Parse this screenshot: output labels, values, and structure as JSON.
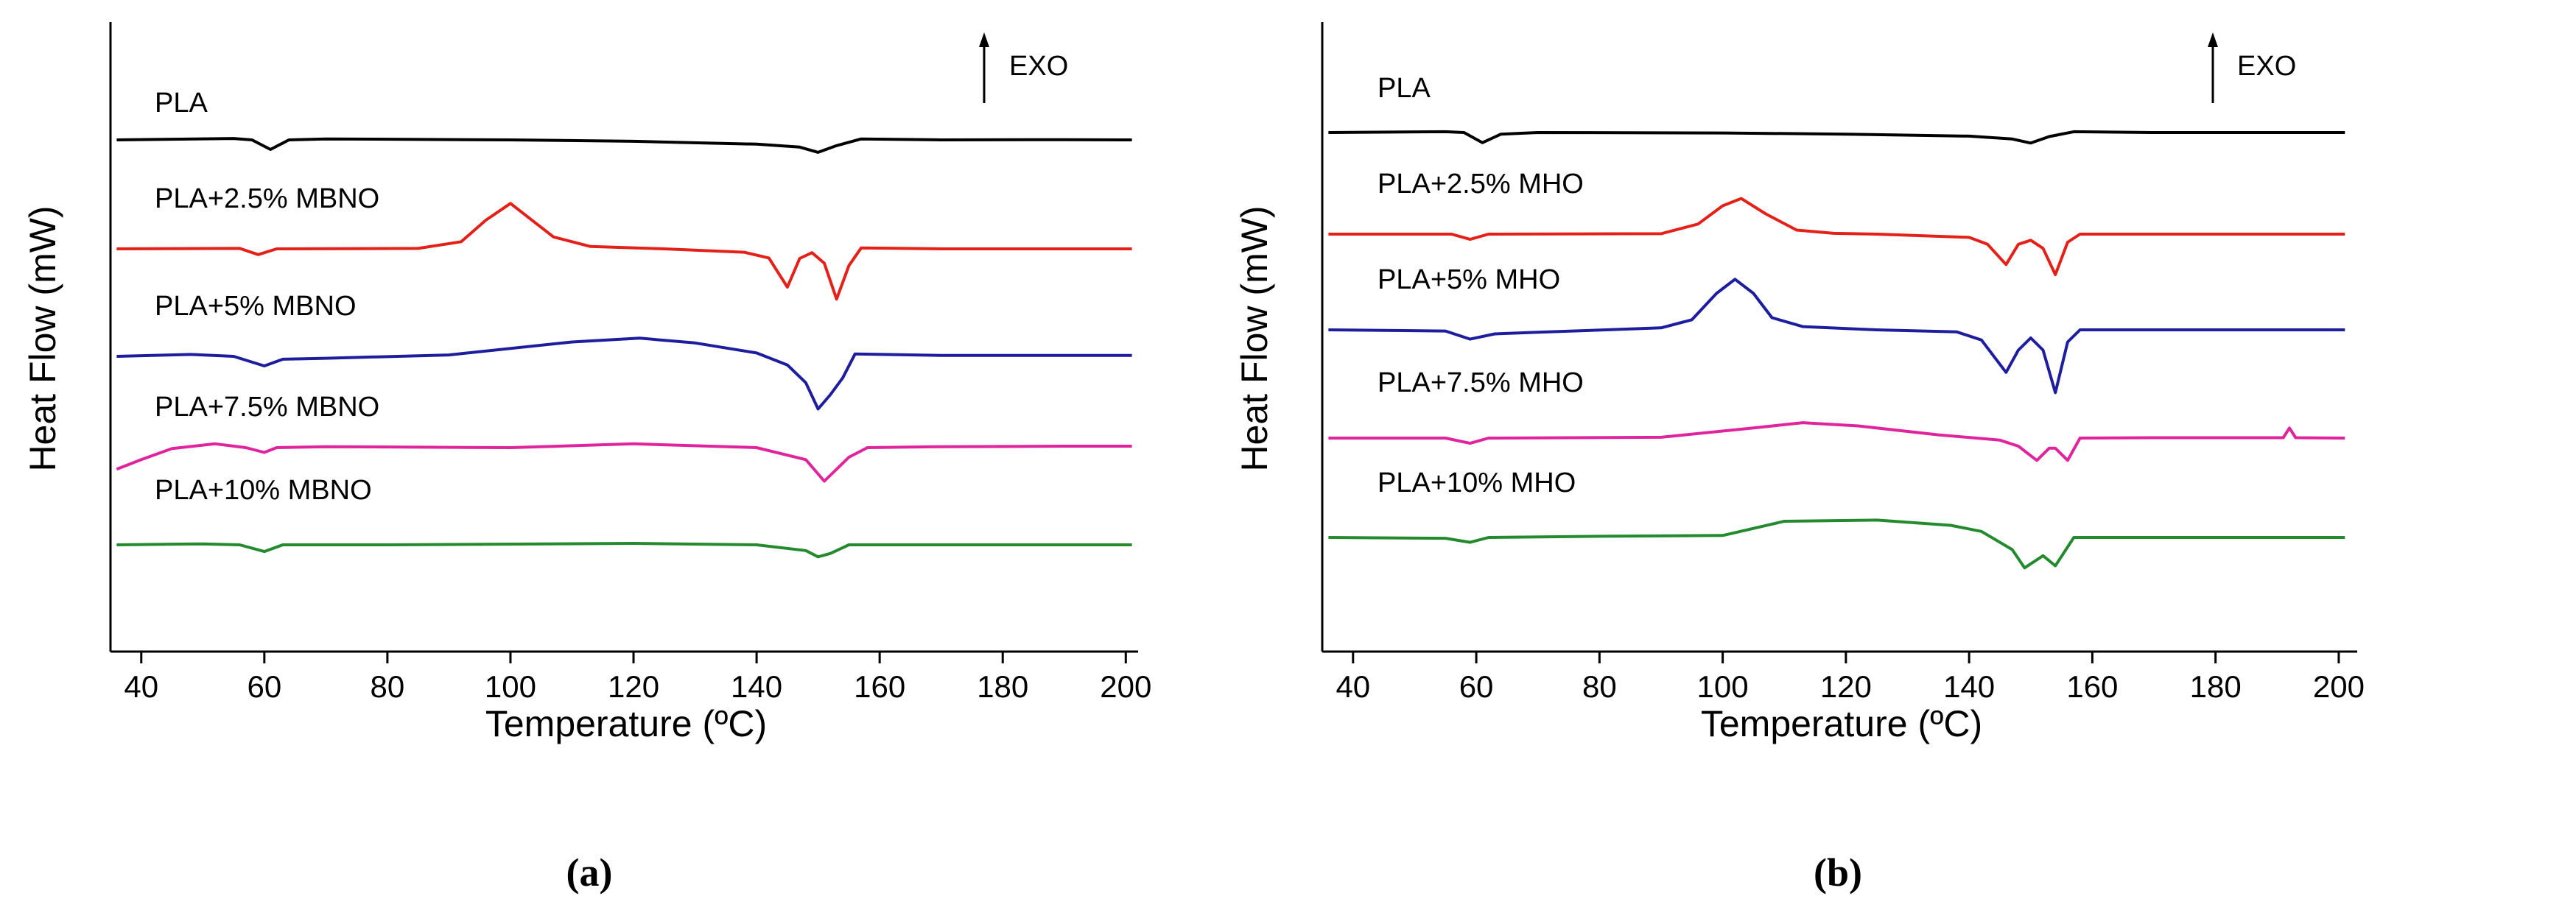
{
  "chart_data": [
    {
      "type": "line",
      "panel_label": "(a)",
      "xlabel": "Temperature (ºC)",
      "ylabel": "Heat Flow (mW)",
      "annotation": "EXO",
      "xlim": [
        35,
        202
      ],
      "xticks": [
        40,
        60,
        80,
        100,
        120,
        140,
        160,
        180,
        200
      ],
      "yticks_shown": false,
      "grid": false,
      "series": [
        {
          "name": "PLA",
          "color": "#000000",
          "points": [
            [
              36,
              0
            ],
            [
              55,
              0.3
            ],
            [
              58,
              0
            ],
            [
              61,
              -2.0
            ],
            [
              64,
              0
            ],
            [
              70,
              0.2
            ],
            [
              100,
              0
            ],
            [
              120,
              -0.3
            ],
            [
              140,
              -0.9
            ],
            [
              147,
              -1.5
            ],
            [
              150,
              -2.6
            ],
            [
              153,
              -1.2
            ],
            [
              157,
              0.2
            ],
            [
              170,
              0
            ],
            [
              190,
              0.05
            ],
            [
              201,
              0
            ]
          ]
        },
        {
          "name": "PLA+2.5% MBNO",
          "color": "#e32119",
          "points": [
            [
              36,
              0
            ],
            [
              56,
              0.1
            ],
            [
              59,
              -1.2
            ],
            [
              62,
              0
            ],
            [
              85,
              0.1
            ],
            [
              92,
              1.5
            ],
            [
              96,
              6.0
            ],
            [
              100,
              9.5
            ],
            [
              103,
              6.5
            ],
            [
              107,
              2.5
            ],
            [
              113,
              0.5
            ],
            [
              125,
              0
            ],
            [
              138,
              -0.7
            ],
            [
              142,
              -1.9
            ],
            [
              145,
              -8.0
            ],
            [
              147,
              -2.0
            ],
            [
              149,
              -0.8
            ],
            [
              151,
              -3.0
            ],
            [
              153,
              -10.5
            ],
            [
              155,
              -3.5
            ],
            [
              157,
              0.2
            ],
            [
              170,
              0
            ],
            [
              201,
              0
            ]
          ]
        },
        {
          "name": "PLA+5% MBNO",
          "color": "#1d1d9e",
          "points": [
            [
              36,
              0
            ],
            [
              48,
              0.4
            ],
            [
              55,
              0
            ],
            [
              60,
              -2.0
            ],
            [
              63,
              -0.6
            ],
            [
              70,
              -0.4
            ],
            [
              90,
              0.3
            ],
            [
              110,
              3.0
            ],
            [
              121,
              3.8
            ],
            [
              130,
              2.8
            ],
            [
              140,
              0.7
            ],
            [
              145,
              -1.8
            ],
            [
              148,
              -5.5
            ],
            [
              150,
              -11.0
            ],
            [
              152,
              -8.0
            ],
            [
              154,
              -4.5
            ],
            [
              156,
              0.5
            ],
            [
              170,
              0.2
            ],
            [
              201,
              0.2
            ]
          ]
        },
        {
          "name": "PLA+7.5% MBNO",
          "color": "#e0249e",
          "points": [
            [
              36,
              -4.5
            ],
            [
              40,
              -2.5
            ],
            [
              45,
              -0.2
            ],
            [
              52,
              0.8
            ],
            [
              57,
              0
            ],
            [
              60,
              -1.0
            ],
            [
              62,
              0
            ],
            [
              70,
              0.2
            ],
            [
              100,
              0
            ],
            [
              120,
              0.8
            ],
            [
              140,
              0
            ],
            [
              148,
              -2.5
            ],
            [
              151,
              -7.0
            ],
            [
              153,
              -4.5
            ],
            [
              155,
              -2.0
            ],
            [
              158,
              0
            ],
            [
              170,
              0.2
            ],
            [
              190,
              0.3
            ],
            [
              201,
              0.3
            ]
          ]
        },
        {
          "name": "PLA+10% MBNO",
          "color": "#238a2e",
          "points": [
            [
              36,
              0
            ],
            [
              50,
              0.2
            ],
            [
              56,
              0
            ],
            [
              60,
              -1.4
            ],
            [
              63,
              0
            ],
            [
              80,
              0
            ],
            [
              120,
              0.3
            ],
            [
              140,
              0
            ],
            [
              148,
              -1.2
            ],
            [
              150,
              -2.5
            ],
            [
              152,
              -1.8
            ],
            [
              155,
              0
            ],
            [
              170,
              0
            ],
            [
              201,
              0
            ]
          ]
        }
      ]
    },
    {
      "type": "line",
      "panel_label": "(b)",
      "xlabel": "Temperature (ºC)",
      "ylabel": "Heat Flow (mW)",
      "annotation": "EXO",
      "xlim": [
        35,
        203
      ],
      "xticks": [
        40,
        60,
        80,
        100,
        120,
        140,
        160,
        180,
        200
      ],
      "yticks_shown": false,
      "grid": false,
      "series": [
        {
          "name": "PLA",
          "color": "#000000",
          "points": [
            [
              36,
              0
            ],
            [
              55,
              0.2
            ],
            [
              58,
              0
            ],
            [
              61,
              -2.5
            ],
            [
              64,
              -0.4
            ],
            [
              70,
              0
            ],
            [
              100,
              -0.1
            ],
            [
              120,
              -0.4
            ],
            [
              140,
              -0.9
            ],
            [
              147,
              -1.6
            ],
            [
              150,
              -2.6
            ],
            [
              153,
              -1.0
            ],
            [
              157,
              0.2
            ],
            [
              170,
              0
            ],
            [
              201,
              0
            ]
          ]
        },
        {
          "name": "PLA+2.5% MHO",
          "color": "#e32119",
          "points": [
            [
              36,
              0
            ],
            [
              56,
              0
            ],
            [
              59,
              -1.3
            ],
            [
              62,
              0
            ],
            [
              90,
              0.1
            ],
            [
              96,
              2.5
            ],
            [
              100,
              7.0
            ],
            [
              103,
              8.8
            ],
            [
              107,
              5.0
            ],
            [
              112,
              1.0
            ],
            [
              118,
              0.2
            ],
            [
              125,
              0
            ],
            [
              140,
              -0.8
            ],
            [
              143,
              -2.5
            ],
            [
              146,
              -7.5
            ],
            [
              148,
              -2.5
            ],
            [
              150,
              -1.5
            ],
            [
              152,
              -3.5
            ],
            [
              154,
              -10.0
            ],
            [
              156,
              -2.0
            ],
            [
              158,
              0
            ],
            [
              170,
              0
            ],
            [
              201,
              0
            ]
          ]
        },
        {
          "name": "PLA+5% MHO",
          "color": "#1d1d9e",
          "points": [
            [
              36,
              0
            ],
            [
              55,
              -0.3
            ],
            [
              59,
              -2.3
            ],
            [
              63,
              -1.0
            ],
            [
              70,
              -0.6
            ],
            [
              90,
              0.5
            ],
            [
              95,
              2.5
            ],
            [
              99,
              9.0
            ],
            [
              102,
              12.5
            ],
            [
              105,
              9.0
            ],
            [
              108,
              3.0
            ],
            [
              113,
              0.8
            ],
            [
              125,
              0
            ],
            [
              138,
              -0.5
            ],
            [
              142,
              -2.5
            ],
            [
              146,
              -10.5
            ],
            [
              148,
              -5.0
            ],
            [
              150,
              -2.0
            ],
            [
              152,
              -5.0
            ],
            [
              154,
              -15.5
            ],
            [
              156,
              -3.0
            ],
            [
              158,
              0
            ],
            [
              170,
              0
            ],
            [
              201,
              0
            ]
          ]
        },
        {
          "name": "PLA+7.5% MHO",
          "color": "#e0249e",
          "points": [
            [
              36,
              0
            ],
            [
              55,
              0
            ],
            [
              59,
              -1.3
            ],
            [
              62,
              0
            ],
            [
              90,
              0.2
            ],
            [
              105,
              2.5
            ],
            [
              113,
              3.8
            ],
            [
              122,
              3.0
            ],
            [
              135,
              0.8
            ],
            [
              145,
              -0.5
            ],
            [
              148,
              -2.0
            ],
            [
              151,
              -5.5
            ],
            [
              153,
              -2.5
            ],
            [
              154,
              -2.5
            ],
            [
              156,
              -5.5
            ],
            [
              158,
              0
            ],
            [
              170,
              0.1
            ],
            [
              191,
              0.1
            ],
            [
              192,
              2.5
            ],
            [
              193,
              0.1
            ],
            [
              201,
              0
            ]
          ]
        },
        {
          "name": "PLA+10% MHO",
          "color": "#238a2e",
          "points": [
            [
              36,
              0
            ],
            [
              55,
              -0.2
            ],
            [
              59,
              -1.2
            ],
            [
              62,
              0
            ],
            [
              80,
              0.3
            ],
            [
              100,
              0.5
            ],
            [
              110,
              4.0
            ],
            [
              125,
              4.3
            ],
            [
              137,
              3.0
            ],
            [
              142,
              1.5
            ],
            [
              147,
              -3.0
            ],
            [
              149,
              -7.5
            ],
            [
              152,
              -4.5
            ],
            [
              154,
              -7.0
            ],
            [
              157,
              0
            ],
            [
              165,
              0
            ],
            [
              201,
              0
            ]
          ]
        }
      ]
    }
  ]
}
